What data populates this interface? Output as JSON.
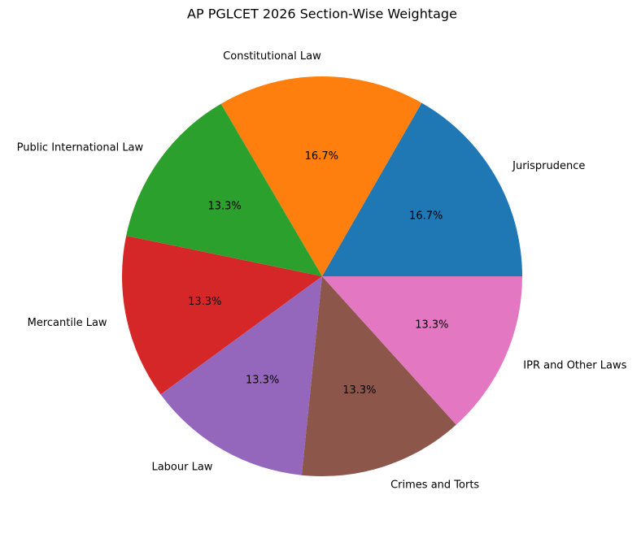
{
  "chart_data": {
    "type": "pie",
    "title": "AP PGLCET 2026 Section-Wise Weightage",
    "categories": [
      "Jurisprudence",
      "Constitutional Law",
      "Public International Law",
      "Mercantile Law",
      "Labour Law",
      "Crimes and Torts",
      "IPR and Other Laws"
    ],
    "values": [
      16.7,
      16.7,
      13.3,
      13.3,
      13.3,
      13.3,
      13.3
    ],
    "value_labels": [
      "16.7%",
      "16.7%",
      "13.3%",
      "13.3%",
      "13.3%",
      "13.3%",
      "13.3%"
    ],
    "colors": [
      "#1f77b4",
      "#ff7f0e",
      "#2ca02c",
      "#d62728",
      "#9467bd",
      "#8c564b",
      "#e377c2"
    ]
  }
}
